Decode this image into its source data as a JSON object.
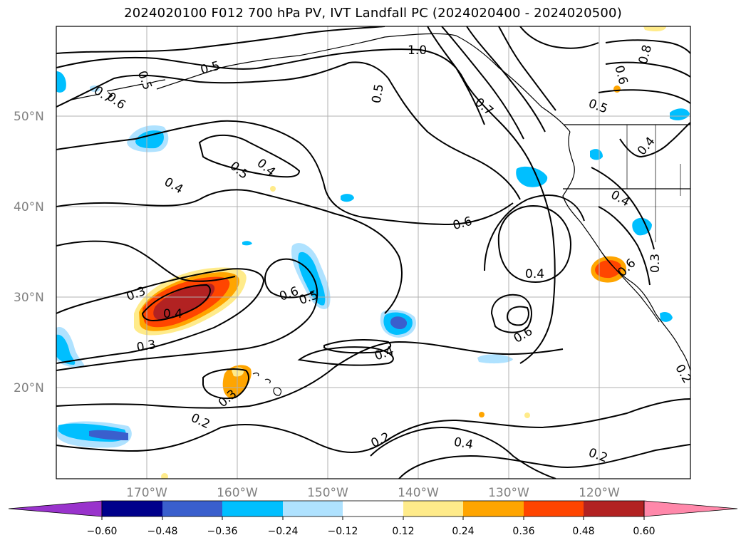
{
  "title": "2024020100 F012 700 hPa PV, IVT Landfall PC (2024020400 - 2024020500)",
  "lat_labels": [
    "50°N",
    "40°N",
    "30°N",
    "20°N"
  ],
  "lon_labels": [
    "170°W",
    "160°W",
    "150°W",
    "140°W",
    "130°W",
    "120°W"
  ],
  "colorbar": {
    "tick_labels": [
      "-0.60",
      "-0.48",
      "-0.36",
      "-0.24",
      "-0.12",
      "0.12",
      "0.24",
      "0.36",
      "0.48",
      "0.60"
    ],
    "colors": [
      "#9933cc",
      "#00008b",
      "#3a5fcd",
      "#00bfff",
      "#afe2ff",
      "#ffffff",
      "#ffeb8a",
      "#ffa500",
      "#ff4500",
      "#b22222",
      "#ff88aa"
    ]
  },
  "contour_labels": [
    "1.0",
    "0.5",
    "0.5",
    "0.6",
    "0.7",
    "0.7",
    "0.5",
    "0.8",
    "0.6",
    "0.5",
    "0.5",
    "0.4",
    "0.4",
    "0.4",
    "0.6",
    "0.4",
    "0.4",
    "0.3",
    "0.3",
    "0.4",
    "0.6",
    "0.5",
    "0.6",
    "0.3",
    "0.4",
    "0.6",
    "0.3",
    "0.2",
    "0.2",
    "0.4",
    "0.2",
    "0.2"
  ]
}
